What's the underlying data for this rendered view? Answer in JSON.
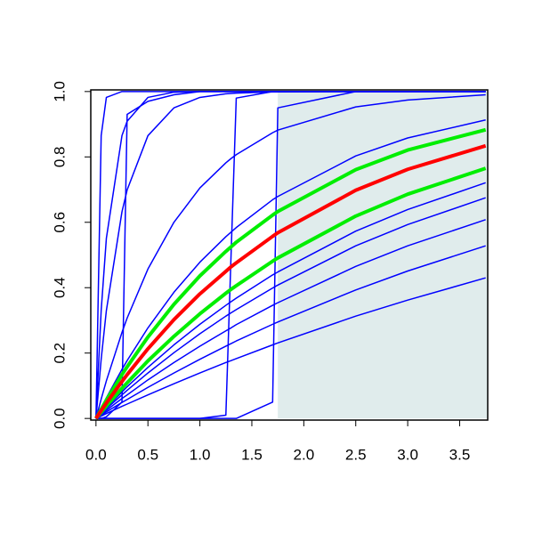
{
  "chart_data": {
    "type": "line",
    "x": [
      0,
      0.05,
      0.1,
      0.25,
      0.3,
      0.5,
      0.75,
      1,
      1.25,
      1.3,
      1.35,
      1.7,
      1.75,
      2.5,
      3,
      3.75
    ],
    "xlim": [
      -0.05,
      3.77
    ],
    "ylim": [
      -0.005,
      1.005
    ],
    "xticks": [
      {
        "value": 0,
        "label": "0.0"
      },
      0.5,
      {
        "value": 1,
        "label": "1.0"
      },
      1.5,
      {
        "value": 2,
        "label": "2.0"
      },
      2.5,
      {
        "value": 3,
        "label": "3.0"
      },
      3.5
    ],
    "yticks": [
      {
        "value": 0,
        "label": "0.0"
      },
      0.2,
      0.4,
      0.6,
      0.8,
      {
        "value": 1,
        "label": "1.0"
      }
    ],
    "shade": {
      "x": [
        1.75,
        3.77
      ],
      "y": [
        0,
        1
      ],
      "color": "#e0ecec"
    },
    "series": [
      {
        "color": "#0000ff",
        "linewidth": 1.5,
        "values": [
          0,
          0.007,
          0.015,
          0.037,
          0.044,
          0.072,
          0.106,
          0.139,
          0.171,
          0.177,
          0.183,
          0.225,
          0.231,
          0.313,
          0.362,
          0.43
        ]
      },
      {
        "color": "#0000ff",
        "linewidth": 1.5,
        "values": [
          0,
          0.01,
          0.02,
          0.049,
          0.058,
          0.095,
          0.139,
          0.181,
          0.221,
          0.229,
          0.237,
          0.288,
          0.295,
          0.393,
          0.451,
          0.528
        ]
      },
      {
        "color": "#0000ff",
        "linewidth": 1.5,
        "values": [
          0,
          0.012,
          0.025,
          0.061,
          0.072,
          0.118,
          0.171,
          0.221,
          0.268,
          0.277,
          0.287,
          0.346,
          0.354,
          0.465,
          0.528,
          0.608
        ]
      },
      {
        "color": "#0000ff",
        "linewidth": 1.5,
        "values": [
          0,
          0.015,
          0.03,
          0.072,
          0.086,
          0.139,
          0.201,
          0.259,
          0.313,
          0.323,
          0.333,
          0.399,
          0.408,
          0.528,
          0.593,
          0.675
        ]
      },
      {
        "color": "#0000ff",
        "linewidth": 1.5,
        "values": [
          0,
          0.017,
          0.033,
          0.081,
          0.097,
          0.156,
          0.225,
          0.288,
          0.346,
          0.357,
          0.368,
          0.439,
          0.448,
          0.573,
          0.639,
          0.721
        ]
      },
      {
        "color": "#0000ff",
        "linewidth": 1.5,
        "values": [
          0,
          0.032,
          0.063,
          0.15,
          0.177,
          0.277,
          0.386,
          0.478,
          0.556,
          0.57,
          0.584,
          0.669,
          0.679,
          0.803,
          0.858,
          0.913
        ]
      },
      {
        "color": "#0000ff",
        "linewidth": 1.5,
        "values": [
          0,
          0.059,
          0.115,
          0.263,
          0.307,
          0.457,
          0.6,
          0.705,
          0.782,
          0.795,
          0.807,
          0.874,
          0.882,
          0.953,
          0.974,
          0.99
        ]
      },
      {
        "color": "#0000ff",
        "linewidth": 1.5,
        "values": [
          0,
          0.181,
          0.33,
          0.632,
          0.699,
          0.865,
          0.95,
          0.982,
          0.993,
          0.994,
          0.995,
          0.999,
          0.999,
          1,
          1,
          1
        ]
      },
      {
        "color": "#0000ff",
        "linewidth": 1.5,
        "values": [
          0,
          0.33,
          0.551,
          0.865,
          0.909,
          0.982,
          0.998,
          1,
          1,
          1,
          1,
          1,
          1,
          1,
          1,
          1
        ]
      },
      {
        "color": "#0000ff",
        "linewidth": 1.5,
        "values": [
          0,
          0.865,
          0.982,
          1,
          1,
          1,
          1,
          1,
          1,
          1,
          1,
          1,
          1,
          1,
          1,
          1
        ]
      },
      {
        "color": "#0000ff",
        "linewidth": 1.5,
        "values": [
          0,
          0,
          0.005,
          0.05,
          0.93,
          0.97,
          0.99,
          1,
          1,
          1,
          1,
          1,
          1,
          1,
          1,
          1
        ]
      },
      {
        "color": "#0000ff",
        "linewidth": 1.5,
        "values": [
          0,
          0,
          0,
          0,
          0,
          0,
          0,
          0,
          0.01,
          0.5,
          0.98,
          1,
          1,
          1,
          1,
          1
        ]
      },
      {
        "color": "#0000ff",
        "linewidth": 1.5,
        "values": [
          0,
          0,
          0,
          0,
          0,
          0,
          0,
          0,
          0,
          0,
          0,
          0.05,
          0.95,
          1,
          1,
          1
        ]
      },
      {
        "color": "#00ee00",
        "linewidth": 4,
        "values": [
          0,
          0.019,
          0.038,
          0.092,
          0.109,
          0.176,
          0.251,
          0.32,
          0.383,
          0.395,
          0.406,
          0.481,
          0.491,
          0.619,
          0.686,
          0.765
        ]
      },
      {
        "color": "#00ee00",
        "linewidth": 4,
        "values": [
          0,
          0.028,
          0.056,
          0.134,
          0.158,
          0.249,
          0.349,
          0.436,
          0.511,
          0.525,
          0.539,
          0.622,
          0.633,
          0.761,
          0.821,
          0.883
        ]
      },
      {
        "color": "#ff0000",
        "linewidth": 4,
        "values": [
          0,
          0.024,
          0.047,
          0.113,
          0.134,
          0.213,
          0.302,
          0.381,
          0.45,
          0.464,
          0.476,
          0.557,
          0.568,
          0.698,
          0.762,
          0.834
        ]
      }
    ]
  }
}
